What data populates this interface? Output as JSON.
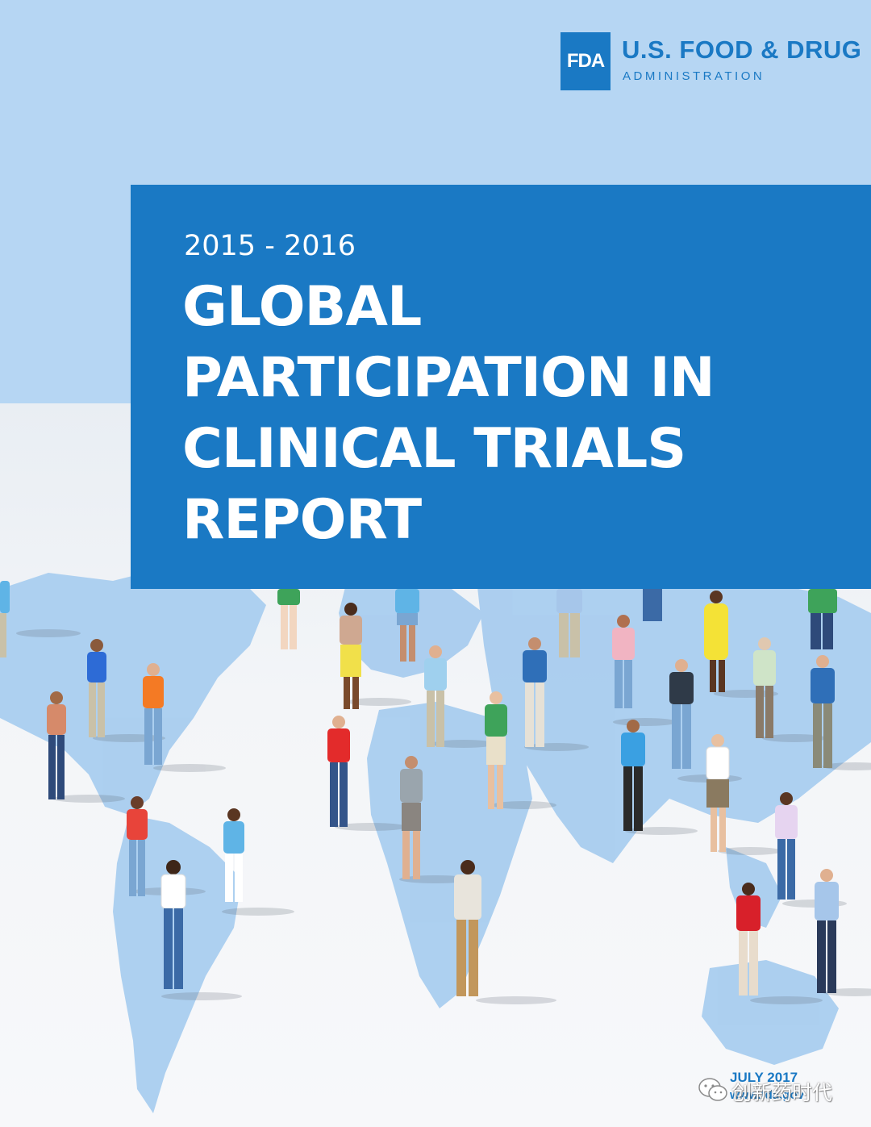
{
  "organization": {
    "logo_mark": "FDA",
    "name": "U.S. FOOD & DRUG",
    "subname": "ADMINISTRATION"
  },
  "cover": {
    "years": "2015 - 2016",
    "title_lines": [
      "GLOBAL",
      "PARTICIPATION IN",
      "CLINICAL TRIALS",
      "REPORT"
    ]
  },
  "footer": {
    "date": "JULY 2017",
    "url": "www.fda.gov"
  },
  "watermark": {
    "icon": "wechat-icon",
    "text": "创新药时代"
  },
  "illustration": {
    "background": "world-map-icon",
    "people": "people-figures"
  },
  "colors": {
    "brand_blue": "#1a79c4",
    "sky_blue": "#b6d6f3",
    "map_blue": "#a9cdef"
  }
}
